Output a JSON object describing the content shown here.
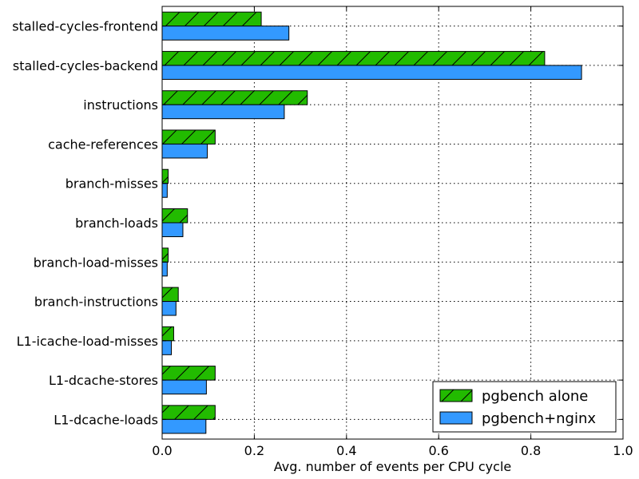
{
  "chart_data": {
    "type": "bar",
    "orientation": "horizontal",
    "title": "",
    "xlabel": "Avg. number of events per CPU cycle",
    "ylabel": "",
    "xlim": [
      0.0,
      1.0
    ],
    "xticks": [
      "0.0",
      "0.2",
      "0.4",
      "0.6",
      "0.8",
      "1.0"
    ],
    "grid": true,
    "legend_position": "lower-right",
    "categories": [
      "stalled-cycles-frontend",
      "stalled-cycles-backend",
      "instructions",
      "cache-references",
      "branch-misses",
      "branch-loads",
      "branch-load-misses",
      "branch-instructions",
      "L1-icache-load-misses",
      "L1-dcache-stores",
      "L1-dcache-loads"
    ],
    "series": [
      {
        "name": "pgbench alone",
        "color": "#22bb00",
        "hatch": "diagonal",
        "values": [
          0.215,
          0.83,
          0.315,
          0.115,
          0.013,
          0.055,
          0.013,
          0.035,
          0.025,
          0.115,
          0.115
        ]
      },
      {
        "name": "pgbench+nginx",
        "color": "#3399ff",
        "hatch": "none",
        "values": [
          0.275,
          0.91,
          0.265,
          0.098,
          0.011,
          0.045,
          0.011,
          0.03,
          0.02,
          0.096,
          0.095
        ]
      }
    ]
  }
}
